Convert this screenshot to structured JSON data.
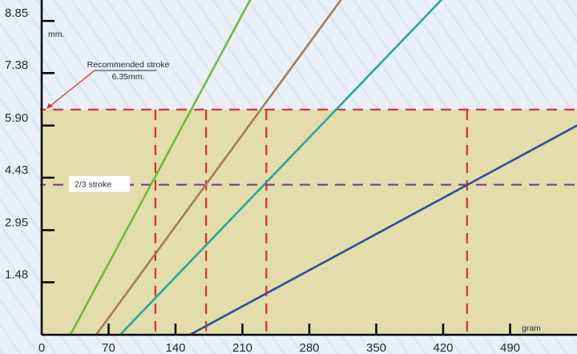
{
  "chart_data": {
    "type": "line",
    "title": "",
    "xlabel": "gram",
    "ylabel": "mm.",
    "xlim": [
      0,
      560
    ],
    "ylim": [
      0,
      9.44
    ],
    "x_ticks": [
      0,
      70,
      140,
      210,
      280,
      350,
      420,
      490
    ],
    "x_tick_labels": [
      "0",
      "70",
      "140",
      "210",
      "280",
      "350",
      "420",
      "490"
    ],
    "y_ticks": [
      1.48,
      2.95,
      4.43,
      5.9,
      7.38,
      8.85
    ],
    "y_tick_labels": [
      "1.48",
      "2.95",
      "4.43",
      "5.90",
      "7.38",
      "8.85"
    ],
    "grid": false,
    "series": [
      {
        "color": "#72b93a",
        "x": [
          30,
          218
        ],
        "y": [
          0,
          9.44
        ]
      },
      {
        "color": "#a57b55",
        "x": [
          57,
          313
        ],
        "y": [
          0,
          9.44
        ]
      },
      {
        "color": "#22a8a0",
        "x": [
          82,
          418
        ],
        "y": [
          0,
          9.44
        ]
      },
      {
        "color": "#2a4f9b",
        "x": [
          155,
          560
        ],
        "y": [
          0,
          5.9
        ]
      }
    ],
    "recommended_stroke": {
      "y": 6.35,
      "label": "Recommended stroke",
      "value_label": "6.35mm.",
      "color": "#e02b2b"
    },
    "two_thirds_stroke": {
      "y": 4.23,
      "label": "2/3 stroke",
      "color": "#7b3f8c"
    },
    "intersection_markers_x": [
      119,
      172,
      235,
      445
    ],
    "shaded_region_color": "#e3dcab"
  }
}
